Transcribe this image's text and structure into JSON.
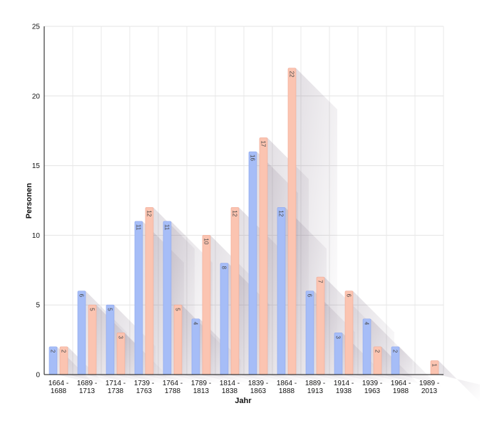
{
  "chart_data": {
    "type": "bar",
    "xlabel": "Jahr",
    "ylabel": "Personen",
    "ylim": [
      0,
      25
    ],
    "yticks": [
      0,
      5,
      10,
      15,
      20,
      25
    ],
    "grid": true,
    "categories": [
      [
        "1664 -",
        "1688"
      ],
      [
        "1689 -",
        "1713"
      ],
      [
        "1714 -",
        "1738"
      ],
      [
        "1739 -",
        "1763"
      ],
      [
        "1764 -",
        "1788"
      ],
      [
        "1789 -",
        "1813"
      ],
      [
        "1814 -",
        "1838"
      ],
      [
        "1839 -",
        "1863"
      ],
      [
        "1864 -",
        "1888"
      ],
      [
        "1889 -",
        "1913"
      ],
      [
        "1914 -",
        "1938"
      ],
      [
        "1939 -",
        "1963"
      ],
      [
        "1964 -",
        "1988"
      ],
      [
        "1989 -",
        "2013"
      ]
    ],
    "series": [
      {
        "color": "#a6bdf7",
        "stroke": "#8ea7ee",
        "values": [
          2,
          6,
          5,
          11,
          11,
          4,
          8,
          16,
          12,
          6,
          3,
          4,
          2,
          null
        ]
      },
      {
        "color": "#fbc4b1",
        "stroke": "#f0a894",
        "values": [
          2,
          5,
          3,
          12,
          5,
          10,
          12,
          17,
          22,
          7,
          6,
          2,
          null,
          1
        ]
      }
    ]
  }
}
